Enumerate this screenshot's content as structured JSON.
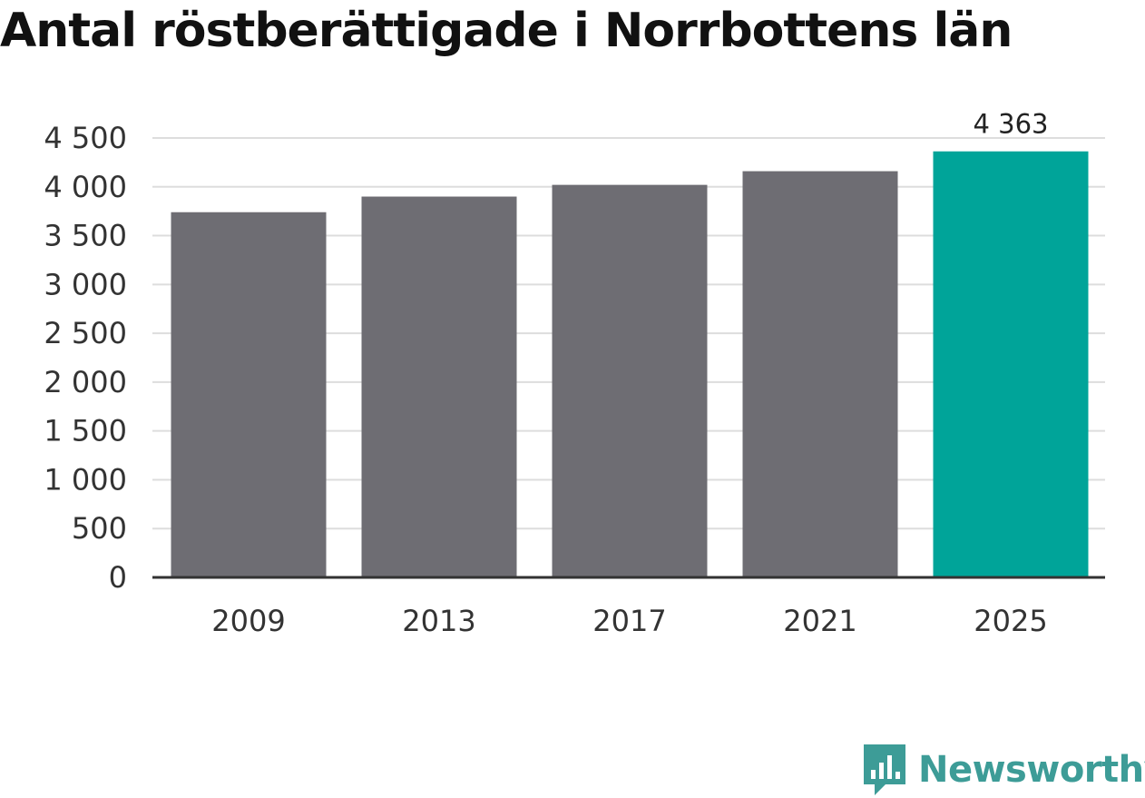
{
  "title": "Antal röstberättigade i Norrbottens län",
  "brand": {
    "name": "Newsworthy",
    "icon": "newsworthy-logo-icon",
    "color": "#3d9c97"
  },
  "colors": {
    "bar": "#6e6d73",
    "highlight": "#00a499",
    "grid": "#dddddd",
    "axis": "#333333"
  },
  "chart_data": {
    "type": "bar",
    "title": "Antal röstberättigade i Norrbottens län",
    "categories": [
      "2009",
      "2013",
      "2017",
      "2021",
      "2025"
    ],
    "values": [
      3740,
      3900,
      4020,
      4160,
      4363
    ],
    "highlight_index": 4,
    "data_labels": [
      "",
      "",
      "",
      "",
      "4 363"
    ],
    "yticks": [
      0,
      500,
      1000,
      1500,
      2000,
      2500,
      3000,
      3500,
      4000,
      4500
    ],
    "ytick_labels": [
      "0",
      "500",
      "1 000",
      "1 500",
      "2 000",
      "2 500",
      "3 000",
      "3 500",
      "4 000",
      "4 500"
    ],
    "ylim": [
      0,
      4500
    ],
    "xlabel": "",
    "ylabel": "",
    "grid": true
  }
}
